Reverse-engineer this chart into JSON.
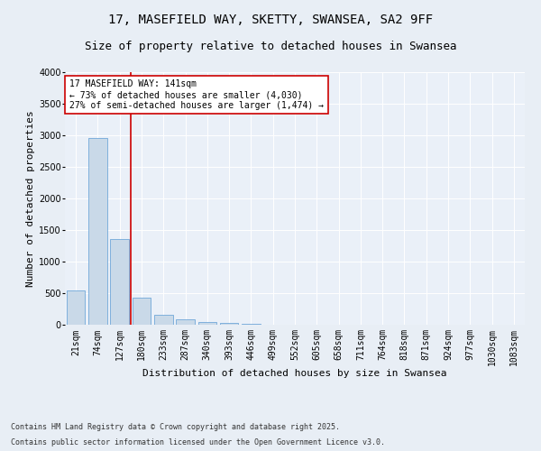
{
  "title1": "17, MASEFIELD WAY, SKETTY, SWANSEA, SA2 9FF",
  "title2": "Size of property relative to detached houses in Swansea",
  "xlabel": "Distribution of detached houses by size in Swansea",
  "ylabel": "Number of detached properties",
  "categories": [
    "21sqm",
    "74sqm",
    "127sqm",
    "180sqm",
    "233sqm",
    "287sqm",
    "340sqm",
    "393sqm",
    "446sqm",
    "499sqm",
    "552sqm",
    "605sqm",
    "658sqm",
    "711sqm",
    "764sqm",
    "818sqm",
    "871sqm",
    "924sqm",
    "977sqm",
    "1030sqm",
    "1083sqm"
  ],
  "values": [
    550,
    2960,
    1355,
    425,
    155,
    80,
    50,
    30,
    15,
    5,
    2,
    1,
    0,
    0,
    0,
    0,
    0,
    0,
    0,
    0,
    0
  ],
  "bar_color": "#c9d9e8",
  "bar_edge_color": "#5b9bd5",
  "ylim": [
    0,
    4000
  ],
  "yticks": [
    0,
    500,
    1000,
    1500,
    2000,
    2500,
    3000,
    3500,
    4000
  ],
  "vline_index": 2,
  "vline_color": "#cc0000",
  "annotation_text": "17 MASEFIELD WAY: 141sqm\n← 73% of detached houses are smaller (4,030)\n27% of semi-detached houses are larger (1,474) →",
  "annotation_box_color": "#ffffff",
  "annotation_box_edgecolor": "#cc0000",
  "footer1": "Contains HM Land Registry data © Crown copyright and database right 2025.",
  "footer2": "Contains public sector information licensed under the Open Government Licence v3.0.",
  "bg_color": "#e8eef5",
  "plot_bg_color": "#eaf0f8",
  "title1_fontsize": 10,
  "title2_fontsize": 9,
  "axis_label_fontsize": 8,
  "tick_fontsize": 7,
  "annotation_fontsize": 7,
  "footer_fontsize": 6
}
